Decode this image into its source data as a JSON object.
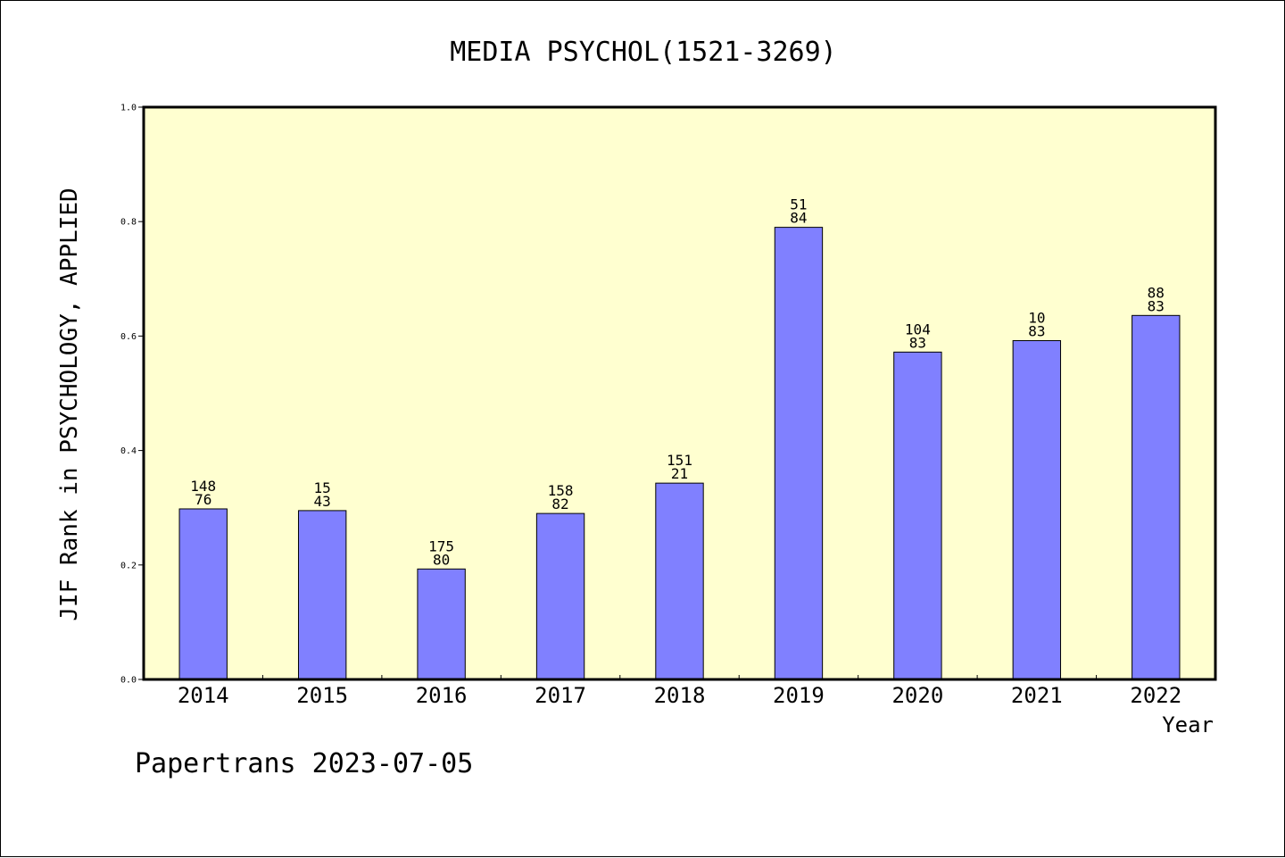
{
  "chart_data": {
    "type": "bar",
    "title": "MEDIA PSYCHOL(1521-3269)",
    "xlabel": "Year",
    "ylabel": "JIF Rank in PSYCHOLOGY, APPLIED",
    "ylim": [
      0,
      1.0
    ],
    "yticks": [
      "0.0",
      "0.2",
      "0.4",
      "0.6",
      "0.8",
      "1.0"
    ],
    "grid": false,
    "categories": [
      "2014",
      "2015",
      "2016",
      "2017",
      "2018",
      "2019",
      "2020",
      "2021",
      "2022"
    ],
    "values": [
      0.298,
      0.295,
      0.193,
      0.29,
      0.343,
      0.79,
      0.572,
      0.592,
      0.636
    ],
    "bar_labels": [
      [
        "148",
        "76"
      ],
      [
        "15",
        "43"
      ],
      [
        "175",
        "80"
      ],
      [
        "158",
        "82"
      ],
      [
        "151",
        "21"
      ],
      [
        "51",
        "84"
      ],
      [
        "104",
        "83"
      ],
      [
        "10",
        "83"
      ],
      [
        "88",
        "83"
      ]
    ],
    "colors": {
      "bar": "#8080ff",
      "plot_background": "#ffffd0",
      "axis": "#000000"
    }
  },
  "footer": {
    "text": "Papertrans 2023-07-05"
  }
}
